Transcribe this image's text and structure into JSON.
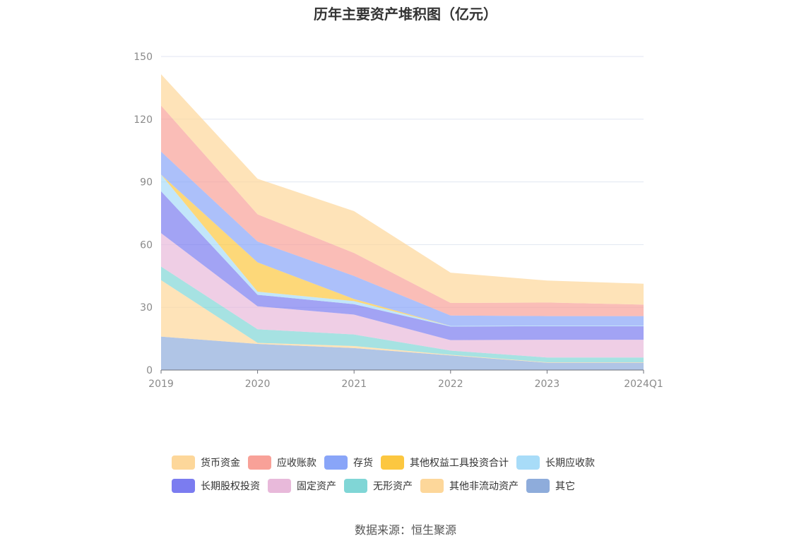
{
  "chart_data": {
    "type": "area",
    "stacked": true,
    "title": "历年主要资产堆积图（亿元）",
    "x": [
      "2019",
      "2020",
      "2021",
      "2022",
      "2023",
      "2024Q1"
    ],
    "ylim": [
      0,
      150
    ],
    "yticks": [
      0,
      30,
      60,
      90,
      120,
      150
    ],
    "grid": true,
    "legend_position": "bottom",
    "series": [
      {
        "name": "其它",
        "color": "#8eacdb",
        "values": [
          16,
          12.5,
          10.5,
          7,
          3.5,
          3.5
        ]
      },
      {
        "name": "其他非流动资产",
        "color": "#fdd79a",
        "values": [
          27,
          0.5,
          1,
          0.3,
          0.2,
          0.2
        ]
      },
      {
        "name": "无形资产",
        "color": "#80d6d6",
        "values": [
          6.5,
          6.5,
          5.5,
          2,
          2.3,
          2.3
        ]
      },
      {
        "name": "固定资产",
        "color": "#e8b9da",
        "values": [
          16,
          11,
          9.5,
          5,
          8.5,
          8.5
        ]
      },
      {
        "name": "长期股权投资",
        "color": "#7b7cf0",
        "values": [
          20,
          5.5,
          5,
          6.5,
          6.5,
          6.5
        ]
      },
      {
        "name": "长期应收款",
        "color": "#a8dcf8",
        "values": [
          8,
          1.5,
          1.5,
          0.3,
          0.3,
          0.3
        ]
      },
      {
        "name": "其他权益工具投资合计",
        "color": "#fcc740",
        "values": [
          0,
          14,
          1,
          0,
          0,
          0
        ]
      },
      {
        "name": "存货",
        "color": "#89a5f8",
        "values": [
          11,
          10,
          11,
          5,
          4.5,
          4.5
        ]
      },
      {
        "name": "应收账款",
        "color": "#f8a198",
        "values": [
          22,
          13,
          11,
          6,
          6.5,
          5.5
        ]
      },
      {
        "name": "货币资金",
        "color": "#fdd79a",
        "values": [
          15,
          17,
          20,
          14.5,
          10.5,
          10
        ]
      }
    ]
  },
  "legend": {
    "row1": [
      "货币资金",
      "应收账款",
      "存货",
      "其他权益工具投资合计",
      "长期应收款"
    ],
    "row2": [
      "长期股权投资",
      "固定资产",
      "无形资产",
      "其他非流动资产",
      "其它"
    ],
    "colors": {
      "货币资金": "#fdd79a",
      "应收账款": "#f8a198",
      "存货": "#89a5f8",
      "其他权益工具投资合计": "#fcc740",
      "长期应收款": "#a8dcf8",
      "长期股权投资": "#7b7cf0",
      "固定资产": "#e8b9da",
      "无形资产": "#80d6d6",
      "其他非流动资产": "#fdd79a",
      "其它": "#8eacdb"
    }
  },
  "source": "数据来源：恒生聚源"
}
